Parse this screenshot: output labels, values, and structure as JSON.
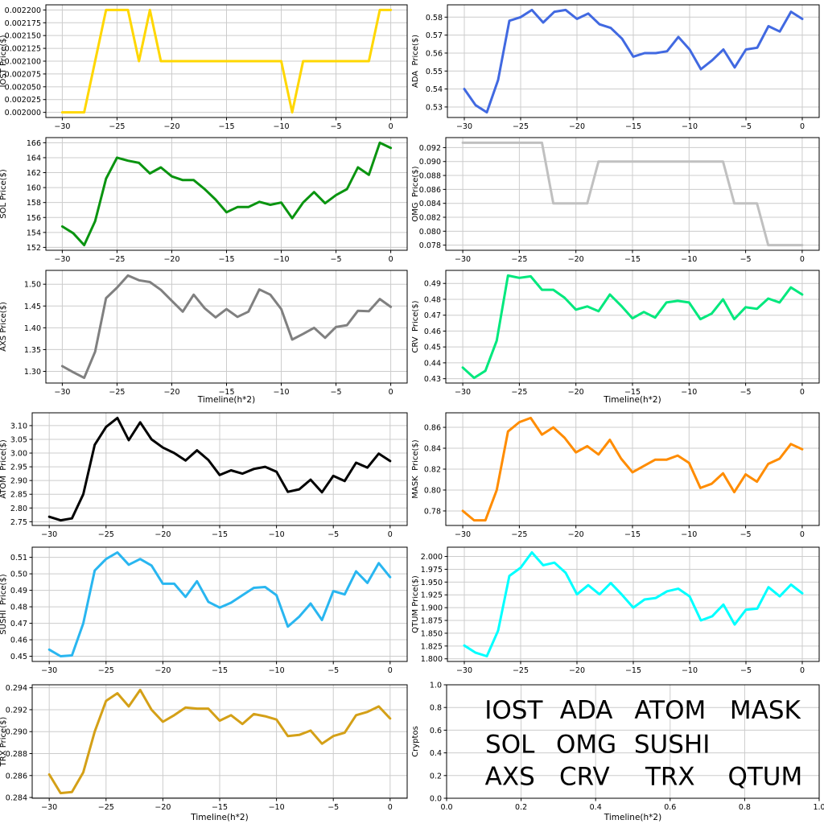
{
  "figure": {
    "background": "#ffffff",
    "x": [
      -30,
      -29,
      -28,
      -27,
      -26,
      -25,
      -24,
      -23,
      -22,
      -21,
      -20,
      -19,
      -18,
      -17,
      -16,
      -15,
      -14,
      -13,
      -12,
      -11,
      -10,
      -9,
      -8,
      -7,
      -6,
      -5,
      -4,
      -3,
      -2,
      -1,
      0
    ],
    "xticks": [
      -30,
      -25,
      -20,
      -15,
      -10,
      -5,
      0
    ],
    "xtick_labels": [
      "−30",
      "−25",
      "−20",
      "−15",
      "−10",
      "−5",
      "0"
    ],
    "xlabel": "Timeline(h*2)",
    "grid_color": "#cccccc",
    "spine_color": "#000000"
  },
  "chart_data": [
    {
      "type": "line",
      "name": "IOST",
      "ylabel": "IOST Price($)",
      "color": "#FFD700",
      "show_xlabel": false,
      "ytick_labels": [
        "0.002000",
        "0.002025",
        "0.002050",
        "0.002075",
        "0.002100",
        "0.002125",
        "0.002150",
        "0.002175",
        "0.002200"
      ],
      "values": [
        0.002,
        0.002,
        0.002,
        0.0021,
        0.0022,
        0.0022,
        0.0022,
        0.0021,
        0.0022,
        0.0021,
        0.0021,
        0.0021,
        0.0021,
        0.0021,
        0.0021,
        0.0021,
        0.0021,
        0.0021,
        0.0021,
        0.0021,
        0.0021,
        0.002,
        0.0021,
        0.0021,
        0.0021,
        0.0021,
        0.0021,
        0.0021,
        0.0021,
        0.0022,
        0.0022
      ]
    },
    {
      "type": "line",
      "name": "ADA",
      "ylabel": "ADA  Price($)",
      "color": "#4169E1",
      "show_xlabel": false,
      "ytick_labels": [
        "0.53",
        "0.54",
        "0.55",
        "0.56",
        "0.57",
        "0.58"
      ],
      "values": [
        0.54,
        0.531,
        0.527,
        0.545,
        0.578,
        0.58,
        0.584,
        0.577,
        0.583,
        0.584,
        0.579,
        0.582,
        0.576,
        0.574,
        0.568,
        0.558,
        0.56,
        0.56,
        0.561,
        0.569,
        0.562,
        0.551,
        0.556,
        0.562,
        0.552,
        0.562,
        0.563,
        0.575,
        0.572,
        0.583,
        0.579
      ]
    },
    {
      "type": "line",
      "name": "SOL",
      "ylabel": "SOL Price($)",
      "color": "#0A9410",
      "show_xlabel": false,
      "ytick_labels": [
        "152",
        "154",
        "156",
        "158",
        "160",
        "162",
        "164",
        "166"
      ],
      "values": [
        154.8,
        153.9,
        152.3,
        155.5,
        161.2,
        164.0,
        163.6,
        163.3,
        161.9,
        162.7,
        161.5,
        161.0,
        161.0,
        159.8,
        158.4,
        156.7,
        157.4,
        157.4,
        158.1,
        157.7,
        158.0,
        155.9,
        158.0,
        159.4,
        157.9,
        159.0,
        159.8,
        162.7,
        161.7,
        166.0,
        165.3
      ]
    },
    {
      "type": "line",
      "name": "OMG",
      "ylabel": "OMG  Price($)",
      "color": "#C0C0C0",
      "show_xlabel": false,
      "ytick_labels": [
        "0.078",
        "0.080",
        "0.082",
        "0.084",
        "0.086",
        "0.088",
        "0.090",
        "0.092"
      ],
      "values": [
        0.0927,
        0.0927,
        0.0927,
        0.0927,
        0.0927,
        0.0927,
        0.0927,
        0.0927,
        0.084,
        0.084,
        0.084,
        0.084,
        0.09,
        0.09,
        0.09,
        0.09,
        0.09,
        0.09,
        0.09,
        0.09,
        0.09,
        0.09,
        0.09,
        0.09,
        0.084,
        0.084,
        0.084,
        0.078,
        0.078,
        0.078,
        0.078
      ]
    },
    {
      "type": "line",
      "name": "AXS",
      "ylabel": "AXS Price($)",
      "color": "#808080",
      "show_xlabel": true,
      "ytick_labels": [
        "1.30",
        "1.35",
        "1.40",
        "1.45",
        "1.50"
      ],
      "values": [
        1.312,
        1.298,
        1.285,
        1.345,
        1.468,
        1.492,
        1.52,
        1.509,
        1.505,
        1.487,
        1.462,
        1.437,
        1.476,
        1.445,
        1.424,
        1.443,
        1.425,
        1.437,
        1.488,
        1.476,
        1.443,
        1.373,
        1.386,
        1.4,
        1.377,
        1.402,
        1.406,
        1.439,
        1.438,
        1.466,
        1.448
      ]
    },
    {
      "type": "line",
      "name": "CRV",
      "ylabel": "CRV  Price($)",
      "color": "#00E87D",
      "show_xlabel": true,
      "ytick_labels": [
        "0.43",
        "0.44",
        "0.45",
        "0.46",
        "0.47",
        "0.48",
        "0.49"
      ],
      "values": [
        0.437,
        0.4305,
        0.435,
        0.454,
        0.495,
        0.4935,
        0.4945,
        0.486,
        0.486,
        0.481,
        0.4735,
        0.4755,
        0.4725,
        0.483,
        0.476,
        0.468,
        0.472,
        0.4685,
        0.478,
        0.479,
        0.478,
        0.4675,
        0.471,
        0.48,
        0.4675,
        0.475,
        0.474,
        0.4805,
        0.478,
        0.4875,
        0.483
      ]
    },
    {
      "type": "line",
      "name": "ATOM",
      "ylabel": "ATOM  Price($)",
      "color": "#000000",
      "show_xlabel": false,
      "ytick_labels": [
        "2.75",
        "2.80",
        "2.85",
        "2.90",
        "2.95",
        "3.00",
        "3.05",
        "3.10"
      ],
      "values": [
        2.768,
        2.755,
        2.762,
        2.85,
        3.03,
        3.095,
        3.128,
        3.047,
        3.112,
        3.05,
        3.02,
        3.0,
        2.973,
        3.01,
        2.975,
        2.92,
        2.937,
        2.925,
        2.942,
        2.95,
        2.932,
        2.859,
        2.868,
        2.903,
        2.857,
        2.917,
        2.898,
        2.965,
        2.947,
        2.998,
        2.971
      ]
    },
    {
      "type": "line",
      "name": "MASK",
      "ylabel": "MASK  Price($)",
      "color": "#FF8C00",
      "show_xlabel": false,
      "ytick_labels": [
        "0.78",
        "0.80",
        "0.82",
        "0.84",
        "0.86"
      ],
      "values": [
        0.78,
        0.771,
        0.771,
        0.8,
        0.856,
        0.865,
        0.869,
        0.853,
        0.86,
        0.85,
        0.836,
        0.842,
        0.834,
        0.848,
        0.83,
        0.817,
        0.823,
        0.829,
        0.829,
        0.833,
        0.826,
        0.802,
        0.806,
        0.816,
        0.798,
        0.815,
        0.808,
        0.825,
        0.83,
        0.844,
        0.839
      ]
    },
    {
      "type": "line",
      "name": "SUSHI",
      "ylabel": "SUSHI  Price($)",
      "color": "#29B6F0",
      "show_xlabel": false,
      "ytick_labels": [
        "0.45",
        "0.46",
        "0.47",
        "0.48",
        "0.49",
        "0.50",
        "0.51"
      ],
      "values": [
        0.454,
        0.45,
        0.4505,
        0.47,
        0.502,
        0.509,
        0.513,
        0.5055,
        0.509,
        0.505,
        0.494,
        0.494,
        0.486,
        0.4955,
        0.483,
        0.4795,
        0.4825,
        0.487,
        0.4915,
        0.492,
        0.487,
        0.468,
        0.474,
        0.482,
        0.472,
        0.4895,
        0.4875,
        0.5015,
        0.4945,
        0.5065,
        0.498
      ]
    },
    {
      "type": "line",
      "name": "QTUM",
      "ylabel": "QTUM Price($)",
      "color": "#00FFFF",
      "show_xlabel": false,
      "ytick_labels": [
        "1.800",
        "1.825",
        "1.850",
        "1.875",
        "1.900",
        "1.925",
        "1.950",
        "1.975",
        "2.000"
      ],
      "values": [
        1.826,
        1.812,
        1.805,
        1.855,
        1.962,
        1.978,
        2.008,
        1.983,
        1.988,
        1.968,
        1.926,
        1.944,
        1.926,
        1.948,
        1.925,
        1.9,
        1.916,
        1.919,
        1.932,
        1.937,
        1.922,
        1.875,
        1.883,
        1.906,
        1.867,
        1.896,
        1.898,
        1.94,
        1.922,
        1.945,
        1.928
      ]
    },
    {
      "type": "line",
      "name": "TRX",
      "ylabel": "TRX Price($)",
      "color": "#D4A017",
      "show_xlabel": true,
      "ytick_labels": [
        "0.284",
        "0.286",
        "0.288",
        "0.290",
        "0.292",
        "0.294"
      ],
      "values": [
        0.2861,
        0.2844,
        0.2845,
        0.2863,
        0.29,
        0.2928,
        0.2935,
        0.2923,
        0.2938,
        0.292,
        0.2909,
        0.2915,
        0.2922,
        0.2921,
        0.2921,
        0.291,
        0.2915,
        0.2907,
        0.2916,
        0.2914,
        0.2911,
        0.2896,
        0.2897,
        0.2901,
        0.2889,
        0.2896,
        0.2899,
        0.2915,
        0.2918,
        0.2923,
        0.2912
      ]
    },
    {
      "type": "legend",
      "name": "Cryptos",
      "ylabel": "Cryptos",
      "show_xlabel": true,
      "xticks": [
        0,
        0.2,
        0.4,
        0.6,
        0.8,
        1.0
      ],
      "xtick_labels": [
        "0.0",
        "0.2",
        "0.4",
        "0.6",
        "0.8",
        "1.0"
      ],
      "ytick_labels": [
        "0.0",
        "0.2",
        "0.4",
        "0.6",
        "0.8",
        "1.0"
      ],
      "items": [
        {
          "label": "IOST",
          "color": "#FFD700",
          "x": 0.18,
          "y": 0.78
        },
        {
          "label": "ADA",
          "color": "#4169E1",
          "x": 0.375,
          "y": 0.78
        },
        {
          "label": "ATOM",
          "color": "#000000",
          "x": 0.6,
          "y": 0.78
        },
        {
          "label": "MASK",
          "color": "#FF8C00",
          "x": 0.855,
          "y": 0.78
        },
        {
          "label": "SOL",
          "color": "#0A9410",
          "x": 0.17,
          "y": 0.48
        },
        {
          "label": "OMG",
          "color": "#C0C0C0",
          "x": 0.375,
          "y": 0.48
        },
        {
          "label": "SUSHI",
          "color": "#29B6F0",
          "x": 0.605,
          "y": 0.48
        },
        {
          "label": "AXS",
          "color": "#808080",
          "x": 0.17,
          "y": 0.195
        },
        {
          "label": "CRV",
          "color": "#00E87D",
          "x": 0.37,
          "y": 0.195
        },
        {
          "label": "TRX",
          "color": "#D4A017",
          "x": 0.6,
          "y": 0.195
        },
        {
          "label": "QTUM",
          "color": "#00FFFF",
          "x": 0.855,
          "y": 0.195
        }
      ]
    }
  ]
}
